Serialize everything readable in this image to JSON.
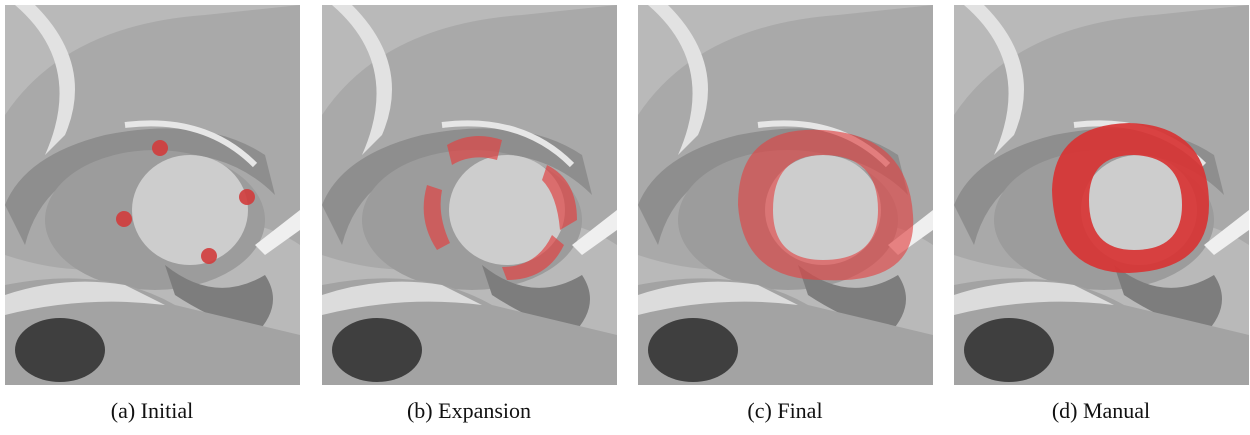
{
  "panels": [
    {
      "caption": "(a) Initial"
    },
    {
      "caption": "(b) Expansion"
    },
    {
      "caption": "(c) Final"
    },
    {
      "caption": "(d) Manual"
    }
  ]
}
